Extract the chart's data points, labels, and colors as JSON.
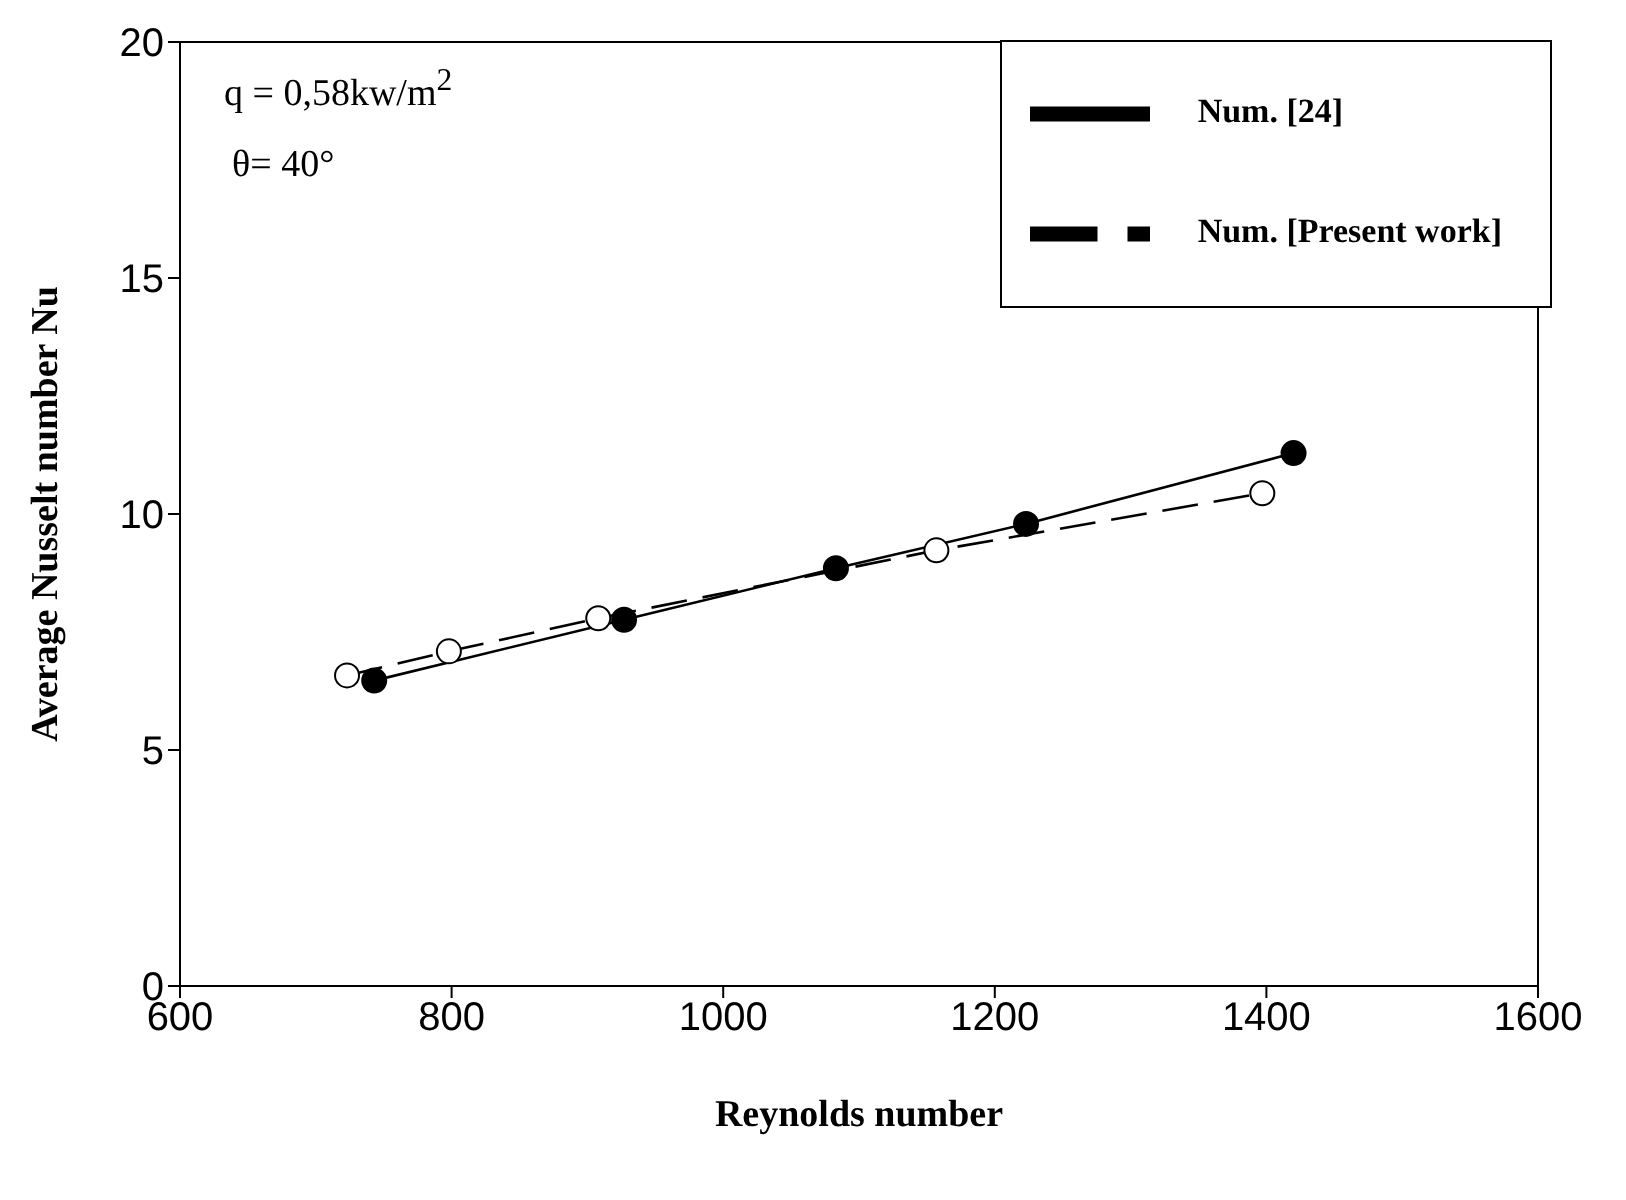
{
  "chart_data": {
    "type": "line",
    "xlabel": "Reynolds number",
    "ylabel": "Average Nusselt number Nu",
    "xlim": [
      600,
      1600
    ],
    "xticks": [
      600,
      800,
      1000,
      1200,
      1400,
      1600
    ],
    "ylim": [
      0,
      20
    ],
    "yticks": [
      0,
      5,
      10,
      15,
      20
    ],
    "grid": false,
    "legend": "top right",
    "marker": "circle",
    "annotations": [
      "q = 0,58kw/m$^{2}$",
      "θ= 40°"
    ],
    "series": [
      {
        "name": "Num. [24]",
        "color": "#000000",
        "line_style": "solid",
        "x": [
          743,
          927,
          1083,
          1223,
          1420
        ],
        "values": [
          6.47,
          7.76,
          8.85,
          9.79,
          11.29
        ]
      },
      {
        "name": "Num. [Present work]",
        "color": "#000000",
        "line_style": "dashed",
        "x": [
          723,
          798,
          908,
          1157,
          1397
        ],
        "values": [
          6.58,
          7.09,
          7.79,
          9.23,
          10.44
        ]
      }
    ]
  }
}
